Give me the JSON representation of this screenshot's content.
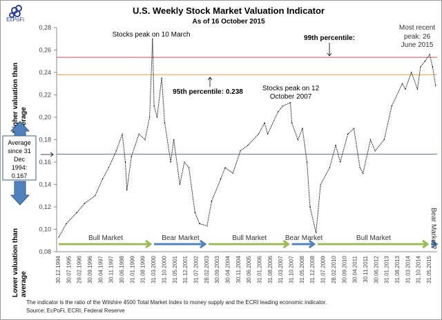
{
  "logo": {
    "text": "EcPoFi"
  },
  "chart_data": {
    "type": "line",
    "title": "U.S. Weekly Stock Market Valuation Indicator",
    "subtitle": "As of 16 October 2015",
    "ylim": [
      0.08,
      0.28
    ],
    "yticks": [
      "0,08",
      "0,10",
      "0,12",
      "0,14",
      "0,16",
      "0,18",
      "0,20",
      "0,22",
      "0,24",
      "0,26",
      "0,28"
    ],
    "ytick_values": [
      0.08,
      0.1,
      0.12,
      0.14,
      0.16,
      0.18,
      0.2,
      0.22,
      0.24,
      0.26,
      0.28
    ],
    "xticks": [
      "30.12.1994",
      "30.07.1995",
      "29.02.1996",
      "30.09.1996",
      "30.04.1997",
      "30.11.1997",
      "30.06.1998",
      "31.01.1999",
      "31.08.1999",
      "31.03.2000",
      "31.10.2000",
      "31.05.2001",
      "31.12.2001",
      "31.07.2002",
      "28.02.2003",
      "30.09.2003",
      "30.04.2004",
      "30.11.2004",
      "30.06.2005",
      "31.01.2006",
      "31.08.2006",
      "31.03.2007",
      "31.10.2007",
      "31.05.2008",
      "31.12.2008",
      "31.07.2009",
      "28.02.2010",
      "30.09.2010",
      "30.04.2011",
      "30.11.2011",
      "30.06.2012",
      "31.01.2013",
      "31.08.2013",
      "31.03.2014",
      "31.10.2014",
      "31.05.2015"
    ],
    "ylabel_top": "Higher valuation than average",
    "ylabel_bottom": "Lower valuation than average",
    "grid": false,
    "series": [
      {
        "x": [
          "1995-01",
          "1995-06",
          "1996-01",
          "1996-06",
          "1997-01",
          "1997-06",
          "1997-10",
          "1998-03",
          "1998-07",
          "1998-09",
          "1998-10",
          "1999-01",
          "1999-06",
          "1999-10",
          "2000-01",
          "2000-03",
          "2000-04",
          "2000-06",
          "2000-09",
          "2000-11",
          "2001-03",
          "2001-05",
          "2001-09",
          "2001-12",
          "2002-03",
          "2002-07",
          "2002-10",
          "2003-03",
          "2003-06",
          "2003-12",
          "2004-03",
          "2004-08",
          "2005-01",
          "2005-06",
          "2006-01",
          "2006-05",
          "2006-07",
          "2007-02",
          "2007-05",
          "2007-10",
          "2007-11",
          "2008-03",
          "2008-06",
          "2008-09",
          "2008-11",
          "2009-03",
          "2009-06",
          "2009-12",
          "2010-04",
          "2010-07",
          "2010-12",
          "2011-04",
          "2011-08",
          "2011-10",
          "2012-03",
          "2012-06",
          "2012-12",
          "2013-05",
          "2013-12",
          "2014-02",
          "2014-06",
          "2014-10",
          "2014-12",
          "2015-03",
          "2015-06",
          "2015-08",
          "2015-10"
        ],
        "y": [
          0.093,
          0.105,
          0.115,
          0.123,
          0.13,
          0.145,
          0.155,
          0.17,
          0.185,
          0.16,
          0.135,
          0.165,
          0.185,
          0.18,
          0.2,
          0.27,
          0.21,
          0.2,
          0.235,
          0.195,
          0.16,
          0.18,
          0.14,
          0.16,
          0.155,
          0.115,
          0.105,
          0.103,
          0.125,
          0.145,
          0.155,
          0.15,
          0.17,
          0.175,
          0.185,
          0.195,
          0.185,
          0.205,
          0.21,
          0.213,
          0.195,
          0.18,
          0.19,
          0.16,
          0.12,
          0.097,
          0.14,
          0.155,
          0.175,
          0.16,
          0.185,
          0.19,
          0.155,
          0.15,
          0.18,
          0.17,
          0.18,
          0.21,
          0.23,
          0.225,
          0.24,
          0.225,
          0.245,
          0.25,
          0.256,
          0.245,
          0.228
        ]
      }
    ],
    "reference_lines": [
      {
        "label": "99th percentile:",
        "value": 0.2535,
        "color": "#c0504d"
      },
      {
        "label": "95th percentile: 0.238",
        "value": 0.238,
        "color": "#f79646"
      },
      {
        "label": "Average since 31 Dec 1994: 0.167",
        "value": 0.167,
        "color": "#4f6fa8"
      }
    ],
    "annotations": {
      "peak_2000": "Stocks peak on 10 March",
      "peak_2007_line1": "Stocks peak on 12",
      "peak_2007_line2": "October 2007",
      "recent_line1": "Most recent",
      "recent_line2": "peak: 26",
      "recent_line3": "June 2015",
      "p99": "99th percentile:",
      "p95": "95th percentile: 0.238",
      "avg_lines": [
        "Average",
        "since 31",
        "Dec",
        "1994:",
        "0.167"
      ]
    },
    "markets": [
      {
        "label": "Bull Market",
        "from": "1995-01",
        "to": "2000-03",
        "color": "#9bbb59"
      },
      {
        "label": "Bear Market",
        "from": "2000-04",
        "to": "2003-03",
        "color": "#4f81bd"
      },
      {
        "label": "Bull Market",
        "from": "2003-04",
        "to": "2007-10",
        "color": "#9bbb59"
      },
      {
        "label": "Bear Market",
        "from": "2007-11",
        "to": "2009-03",
        "color": "#4f81bd"
      },
      {
        "label": "Bull Market",
        "from": "2009-04",
        "to": "2015-06",
        "color": "#9bbb59"
      },
      {
        "label": "Bear Market?",
        "from": "2015-07",
        "to": "2015-12",
        "color": "#4f81bd"
      }
    ]
  },
  "footer": {
    "note": "The indicator is the ratio of the Wilshire 4500 Total Market Index to money supply and the ECRI leading economic indicator.",
    "source": "Source: EcPoFi, ECRI, Federal Reserve"
  }
}
